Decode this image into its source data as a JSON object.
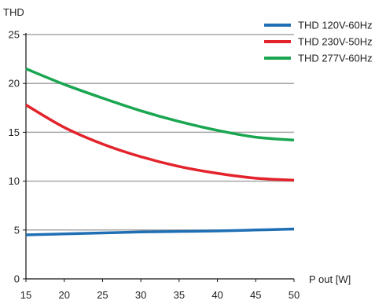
{
  "chart_data": {
    "type": "line",
    "ylabel": "THD",
    "xlabel": "P out [W]",
    "xlim": [
      15,
      50
    ],
    "ylim": [
      0,
      25
    ],
    "xticks": [
      15,
      20,
      25,
      30,
      35,
      40,
      45,
      50
    ],
    "yticks": [
      0,
      5,
      10,
      15,
      20,
      25
    ],
    "grid": "horizontal",
    "legend_position": "top-right",
    "x": [
      15,
      20,
      25,
      30,
      35,
      40,
      45,
      50
    ],
    "series": [
      {
        "name": "THD 120V-60Hz",
        "color": "#1f6fb5",
        "values": [
          4.5,
          4.6,
          4.7,
          4.8,
          4.85,
          4.9,
          5.0,
          5.1
        ]
      },
      {
        "name": "THD 230V-50Hz",
        "color": "#e3232c",
        "values": [
          17.8,
          15.5,
          13.8,
          12.5,
          11.5,
          10.8,
          10.3,
          10.1
        ]
      },
      {
        "name": "THD 277V-60Hz",
        "color": "#1aa651",
        "values": [
          21.5,
          19.9,
          18.5,
          17.2,
          16.1,
          15.2,
          14.5,
          14.2
        ]
      }
    ]
  }
}
